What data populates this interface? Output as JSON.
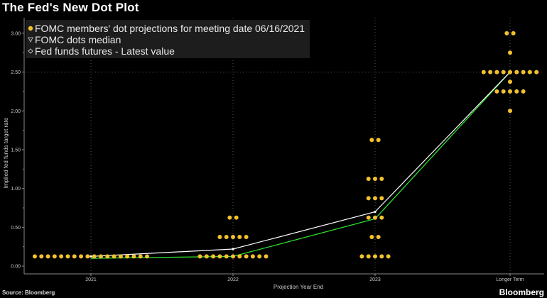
{
  "title": "The Fed's New Dot Plot",
  "source": "Source: Bloomberg",
  "brand": "Bloomberg",
  "colors": {
    "dots": "#f2c12e",
    "median": "#ffffff",
    "futures": "#2ee82e",
    "grid": "#555555"
  },
  "chart_data": {
    "type": "scatter",
    "title": "The Fed's New Dot Plot",
    "xlabel": "Projection Year End",
    "ylabel": "Implied fed funds target rate",
    "categories": [
      "2021",
      "2022",
      "2023",
      "Longer Term"
    ],
    "ylim": [
      -0.1,
      3.2
    ],
    "yticks": [
      "0.00",
      "0.50",
      "1.00",
      "1.50",
      "2.00",
      "2.50",
      "3.00"
    ],
    "grid": "dotted vertical at category positions, dotted horizontal at 2.50",
    "legend_position": "top-left",
    "series": [
      {
        "name": "FOMC members' dot projections for meeting date 06/16/2021",
        "points": [
          {
            "x": "2021",
            "y": 0.125,
            "count": 18
          },
          {
            "x": "2022",
            "y": 0.125,
            "count": 11
          },
          {
            "x": "2022",
            "y": 0.375,
            "count": 5
          },
          {
            "x": "2022",
            "y": 0.625,
            "count": 2
          },
          {
            "x": "2023",
            "y": 0.125,
            "count": 5
          },
          {
            "x": "2023",
            "y": 0.375,
            "count": 2
          },
          {
            "x": "2023",
            "y": 0.625,
            "count": 3
          },
          {
            "x": "2023",
            "y": 0.875,
            "count": 3
          },
          {
            "x": "2023",
            "y": 1.125,
            "count": 3
          },
          {
            "x": "2023",
            "y": 1.625,
            "count": 2
          },
          {
            "x": "Longer Term",
            "y": 2.0,
            "count": 1
          },
          {
            "x": "Longer Term",
            "y": 2.25,
            "count": 5
          },
          {
            "x": "Longer Term",
            "y": 2.375,
            "count": 1
          },
          {
            "x": "Longer Term",
            "y": 2.5,
            "count": 9
          },
          {
            "x": "Longer Term",
            "y": 2.75,
            "count": 1
          },
          {
            "x": "Longer Term",
            "y": 3.0,
            "count": 2
          }
        ]
      },
      {
        "name": "FOMC dots median",
        "values": [
          {
            "x": "2021",
            "y": 0.125
          },
          {
            "x": "2022",
            "y": 0.22
          },
          {
            "x": "2023",
            "y": 0.7
          },
          {
            "x": "Longer Term",
            "y": 2.5
          }
        ]
      },
      {
        "name": "Fed funds futures - Latest value",
        "values": [
          {
            "x": "2021",
            "y": 0.1
          },
          {
            "x": "2022",
            "y": 0.125
          },
          {
            "x": "2023",
            "y": 0.61
          },
          {
            "x": "Longer Term",
            "y": 2.5
          }
        ]
      }
    ]
  }
}
